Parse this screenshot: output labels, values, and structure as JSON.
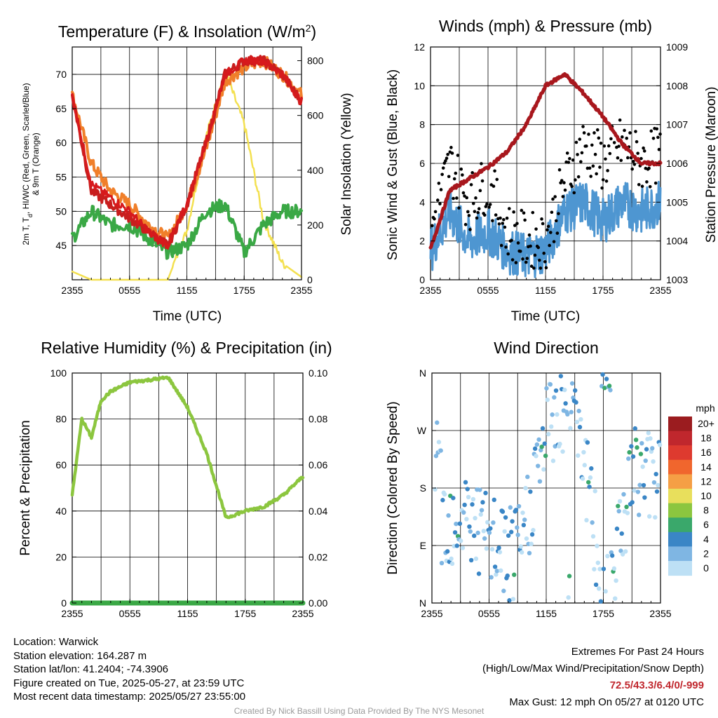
{
  "colors": {
    "temp_2m": "#d7191c",
    "dewpoint": "#3aa845",
    "hi_wc": "#c81e1e",
    "temp_9m": "#f07f2a",
    "insolation": "#f3e050",
    "wind": "#4e96d1",
    "gust": "#000000",
    "pressure": "#a8171d",
    "rh": "#8cc63f",
    "precip": "#3aa845"
  },
  "time_ticks": [
    "2355",
    "0555",
    "1155",
    "1755",
    "2355"
  ],
  "panels": {
    "temperature": {
      "title": "Temperature (F) & Insolation (W/m²)",
      "ylabel_lines": [
        "2m T, Td, HI/WC (Red, Green, Scarlet/Blue)",
        "& 9m T (Orange)"
      ],
      "ylabel_right": "Solar Insolation (Yellow)",
      "xlabel": "Time (UTC)",
      "y_ticks": [
        "45",
        "50",
        "55",
        "60",
        "65",
        "70"
      ],
      "y2_ticks": [
        "0",
        "200",
        "400",
        "600",
        "800"
      ]
    },
    "winds": {
      "title": "Winds (mph) & Pressure (mb)",
      "ylabel": "Sonic Wind & Gust (Blue, Black)",
      "ylabel_right": "Station Pressure (Maroon)",
      "xlabel": "Time (UTC)",
      "y_ticks": [
        "0",
        "2",
        "4",
        "6",
        "8",
        "10",
        "12"
      ],
      "y2_ticks": [
        "1003",
        "1004",
        "1005",
        "1006",
        "1007",
        "1008",
        "1009"
      ]
    },
    "humidity": {
      "title": "Relative Humidity (%) & Precipitation (in)",
      "ylabel": "Percent & Precipitation",
      "y_ticks": [
        "0",
        "20",
        "40",
        "60",
        "80",
        "100"
      ],
      "y2_ticks": [
        "0.00",
        "0.02",
        "0.04",
        "0.06",
        "0.08",
        "0.10"
      ]
    },
    "direction": {
      "title": "Wind Direction",
      "ylabel": "Direction (Colored By Speed)",
      "y_ticks": [
        "N",
        "E",
        "S",
        "W",
        "N"
      ],
      "legend_unit": "mph",
      "legend_labels": [
        "20+",
        "18",
        "16",
        "14",
        "12",
        "10",
        "8",
        "6",
        "4",
        "2",
        "0"
      ],
      "legend_colors": [
        "#9b1c1f",
        "#c0272d",
        "#de3a2f",
        "#f0662d",
        "#f59f45",
        "#e8df5c",
        "#8cc63f",
        "#3aa86b",
        "#3a86c6",
        "#7fb6e3",
        "#bde0f5"
      ]
    }
  },
  "chart_data": [
    {
      "type": "line",
      "title": "Temperature (F) & Insolation (W/m²)",
      "xlabel": "Time (UTC)",
      "x": [
        "2355",
        "0155",
        "0355",
        "0555",
        "0755",
        "0955",
        "1155",
        "1355",
        "1555",
        "1755",
        "1955",
        "2155",
        "2355"
      ],
      "ylim": [
        40,
        74
      ],
      "y2lim": [
        0,
        850
      ],
      "series": [
        {
          "name": "2m T",
          "axis": "left",
          "values": [
            67,
            54,
            52,
            50,
            47,
            45,
            51,
            60,
            70,
            72,
            72,
            70,
            66
          ]
        },
        {
          "name": "Td",
          "axis": "left",
          "values": [
            46,
            50,
            48,
            48,
            46,
            44,
            45,
            50,
            51,
            44,
            48,
            50,
            50
          ]
        },
        {
          "name": "HI/WC",
          "axis": "left",
          "values": [
            67,
            53,
            51,
            49,
            47,
            45,
            51,
            60,
            70,
            72,
            72,
            70,
            66
          ]
        },
        {
          "name": "9m T",
          "axis": "left",
          "values": [
            67,
            57,
            53,
            51,
            48,
            46,
            51,
            59,
            69,
            71,
            72,
            70,
            67
          ]
        },
        {
          "name": "Solar Insolation",
          "axis": "right",
          "values": [
            30,
            0,
            0,
            0,
            0,
            0,
            180,
            520,
            760,
            570,
            220,
            60,
            10
          ]
        }
      ]
    },
    {
      "type": "line",
      "title": "Winds (mph) & Pressure (mb)",
      "xlabel": "Time (UTC)",
      "x": [
        "2355",
        "0155",
        "0355",
        "0555",
        "0755",
        "0955",
        "1155",
        "1355",
        "1555",
        "1755",
        "1955",
        "2155",
        "2355"
      ],
      "ylim": [
        0,
        12
      ],
      "y2lim": [
        1003,
        1009
      ],
      "series": [
        {
          "name": "Sonic Wind",
          "axis": "left",
          "values": [
            1.5,
            3.5,
            2.0,
            2.5,
            1.5,
            1.2,
            1.5,
            3.5,
            4.0,
            3.0,
            4.0,
            3.5,
            4.0
          ]
        },
        {
          "name": "Gust",
          "axis": "left",
          "values": [
            2.5,
            6.0,
            4.0,
            5.0,
            2.5,
            2.0,
            2.0,
            5.0,
            7.0,
            6.0,
            7.0,
            6.0,
            6.5
          ]
        },
        {
          "name": "Station Pressure",
          "axis": "right",
          "values": [
            1003.8,
            1005.3,
            1005.6,
            1005.9,
            1006.3,
            1007.0,
            1008.0,
            1008.3,
            1007.8,
            1007.2,
            1006.5,
            1006.0,
            1006.0
          ]
        }
      ]
    },
    {
      "type": "line",
      "title": "Relative Humidity (%) & Precipitation (in)",
      "ylabel": "Percent & Precipitation",
      "x": [
        "2355",
        "0055",
        "0155",
        "0255",
        "0355",
        "0555",
        "0755",
        "0955",
        "1155",
        "1355",
        "1555",
        "1755",
        "1955",
        "2155",
        "2355"
      ],
      "ylim": [
        0,
        100
      ],
      "y2lim": [
        0,
        0.1
      ],
      "series": [
        {
          "name": "Relative Humidity",
          "axis": "left",
          "values": [
            47,
            80,
            72,
            88,
            92,
            96,
            97,
            98,
            85,
            65,
            37,
            40,
            42,
            47,
            55
          ]
        },
        {
          "name": "Precipitation",
          "axis": "right",
          "values": [
            0,
            0,
            0,
            0,
            0,
            0,
            0,
            0,
            0,
            0,
            0,
            0,
            0,
            0,
            0
          ]
        }
      ]
    },
    {
      "type": "scatter",
      "title": "Wind Direction",
      "ylabel": "Direction (Colored By Speed)",
      "x": [
        "0055",
        "0355",
        "0555",
        "0855",
        "1155",
        "1455",
        "1755",
        "2055",
        "2255"
      ],
      "y_categories": [
        "N",
        "E",
        "S",
        "W",
        "N"
      ],
      "series": [
        {
          "name": "Direction",
          "values": [
            "SE",
            "SE",
            "E",
            "ENE",
            "W",
            "NNW",
            "N",
            "SSW",
            "SSW"
          ]
        }
      ],
      "colorbar": {
        "label": "mph",
        "levels": [
          "0",
          "2",
          "4",
          "6",
          "8",
          "10",
          "12",
          "14",
          "16",
          "18",
          "20+"
        ]
      }
    }
  ],
  "info": {
    "location": "Location: Warwick",
    "elevation": "Station elevation: 164.287 m",
    "latlon": "Station lat/lon: 41.2404; -74.3906",
    "created": "Figure created on Tue, 2025-05-27, at 23:59 UTC",
    "recent": "Most recent data timestamp: 2025/05/27 23:55:00"
  },
  "extremes": {
    "title": "Extremes For Past 24 Hours",
    "subtitle": "(High/Low/Max Wind/Precipitation/Snow Depth)",
    "values": "72.5/43.3/6.4/0/-999",
    "max_gust": "Max Gust: 12 mph On 05/27 at 0120 UTC"
  },
  "credit": "Created By Nick Bassill Using Data Provided By The NYS Mesonet"
}
